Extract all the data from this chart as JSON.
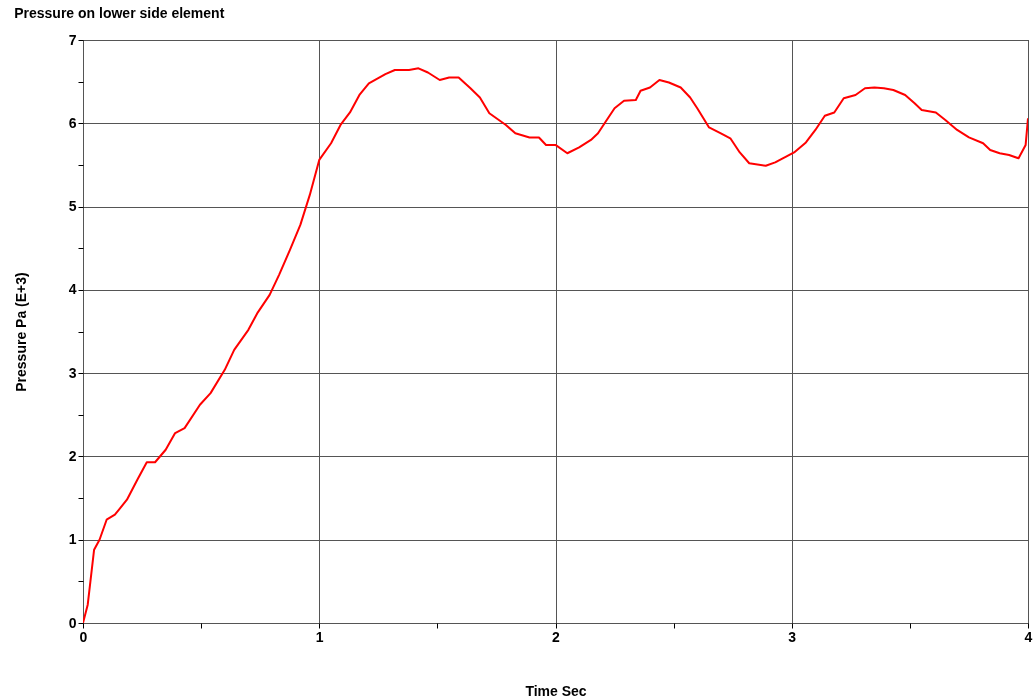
{
  "chart_data": {
    "type": "line",
    "title": "Pressure on lower side element",
    "xlabel": "Time Sec",
    "ylabel": "Pressure Pa (E+3)",
    "x": [
      0,
      0.02,
      0.047,
      0.07,
      0.1,
      0.135,
      0.186,
      0.23,
      0.27,
      0.305,
      0.35,
      0.39,
      0.43,
      0.495,
      0.54,
      0.6,
      0.64,
      0.7,
      0.74,
      0.79,
      0.83,
      0.876,
      0.92,
      0.96,
      1.0,
      1.05,
      1.09,
      1.13,
      1.17,
      1.21,
      1.28,
      1.32,
      1.38,
      1.42,
      1.46,
      1.51,
      1.55,
      1.59,
      1.64,
      1.68,
      1.72,
      1.79,
      1.83,
      1.89,
      1.93,
      1.96,
      2.0,
      2.05,
      2.1,
      2.15,
      2.18,
      2.21,
      2.25,
      2.29,
      2.34,
      2.36,
      2.4,
      2.44,
      2.48,
      2.53,
      2.57,
      2.6,
      2.65,
      2.7,
      2.74,
      2.78,
      2.82,
      2.89,
      2.93,
      2.97,
      3.01,
      3.06,
      3.1,
      3.14,
      3.18,
      3.22,
      3.27,
      3.31,
      3.35,
      3.39,
      3.43,
      3.48,
      3.52,
      3.55,
      3.61,
      3.65,
      3.7,
      3.75,
      3.81,
      3.84,
      3.88,
      3.92,
      3.96,
      3.99,
      4.0
    ],
    "series": [
      {
        "color": "#ff0000",
        "values": [
          0,
          0.22,
          0.88,
          1.0,
          1.24,
          1.3,
          1.48,
          1.72,
          1.93,
          1.93,
          2.08,
          2.28,
          2.34,
          2.62,
          2.76,
          3.04,
          3.28,
          3.52,
          3.73,
          3.94,
          4.18,
          4.48,
          4.78,
          5.14,
          5.56,
          5.76,
          5.98,
          6.13,
          6.34,
          6.48,
          6.59,
          6.64,
          6.64,
          6.66,
          6.61,
          6.52,
          6.55,
          6.55,
          6.42,
          6.31,
          6.12,
          5.98,
          5.88,
          5.83,
          5.83,
          5.74,
          5.74,
          5.64,
          5.71,
          5.8,
          5.88,
          6.01,
          6.18,
          6.27,
          6.28,
          6.39,
          6.43,
          6.52,
          6.49,
          6.43,
          6.31,
          6.18,
          5.95,
          5.88,
          5.82,
          5.65,
          5.52,
          5.49,
          5.53,
          5.59,
          5.65,
          5.77,
          5.92,
          6.09,
          6.13,
          6.3,
          6.34,
          6.42,
          6.43,
          6.42,
          6.4,
          6.34,
          6.24,
          6.16,
          6.13,
          6.04,
          5.92,
          5.83,
          5.76,
          5.68,
          5.64,
          5.62,
          5.58,
          5.74,
          6.06
        ]
      }
    ],
    "xlim": [
      0,
      4
    ],
    "xticks": [
      0,
      {
        "value": 0.5,
        "label": null
      },
      1,
      {
        "value": 1.5,
        "label": null
      },
      2,
      {
        "value": 2.5,
        "label": null
      },
      3,
      {
        "value": 3.5,
        "label": null
      },
      4
    ],
    "ylim": [
      0,
      7
    ],
    "yticks": [
      0,
      {
        "value": 0.5,
        "label": null
      },
      1,
      {
        "value": 1.5,
        "label": null
      },
      2,
      {
        "value": 2.5,
        "label": null
      },
      3,
      {
        "value": 3.5,
        "label": null
      },
      4,
      {
        "value": 4.5,
        "label": null
      },
      5,
      {
        "value": 5.5,
        "label": null
      },
      6,
      {
        "value": 6.5,
        "label": null
      },
      7
    ],
    "grid": true
  }
}
